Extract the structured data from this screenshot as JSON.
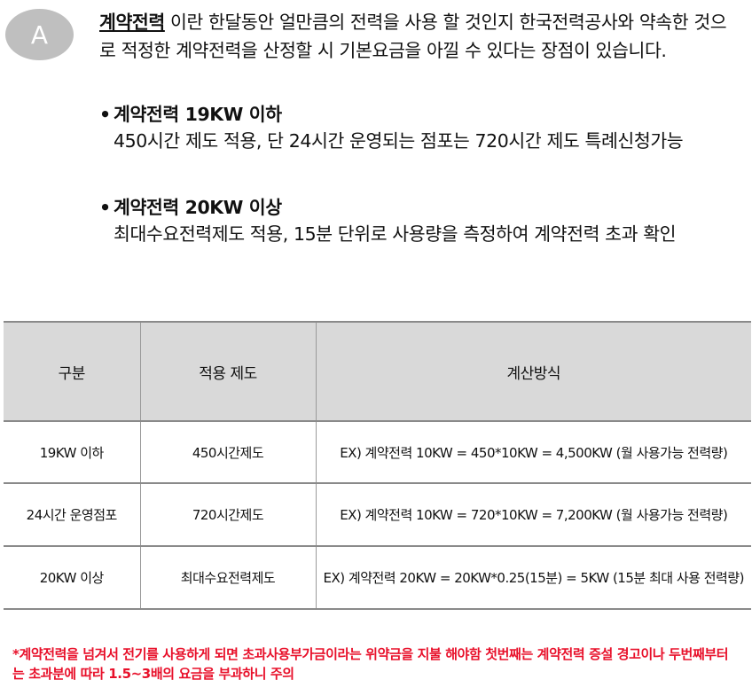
{
  "badge": "A",
  "intro": {
    "term": "계약전력",
    "text": " 이란 한달동안 얼만큼의 전력을 사용 할 것인지 한국전력공사와 약속한 것으로 적정한 계약전력을 산정할 시 기본요금을 아낄 수 있다는 장점이 있습니다."
  },
  "bullets": [
    {
      "title": "계약전력 19KW 이하",
      "desc": "450시간 제도 적용, 단 24시간 운영되는 점포는 720시간 제도 특례신청가능"
    },
    {
      "title": "계약전력 20KW 이상",
      "desc": "최대수요전력제도 적용, 15분 단위로 사용량을 측정하여 계약전력 초과 확인"
    }
  ],
  "table": {
    "headers": [
      "구분",
      "적용 제도",
      "계산방식"
    ],
    "rows": [
      [
        "19KW 이하",
        "450시간제도",
        "EX) 계약전력 10KW = 450*10KW = 4,500KW (월 사용가능 전력량)"
      ],
      [
        "24시간 운영점포",
        "720시간제도",
        "EX) 계약전력 10KW = 720*10KW = 7,200KW (월 사용가능 전력량)"
      ],
      [
        "20KW 이상",
        "최대수요전력제도",
        "EX) 계약전력 20KW = 20KW*0.25(15분) = 5KW (15분 최대 사용 전력량)"
      ]
    ]
  },
  "note": "*계약전력을 넘겨서 전기를 사용하게 되면 초과사용부가금이라는 위약금을 지불 해야함 첫번째는 계약전력 증설 경고이나 두번째부터는 초과분에 따라 1.5~3배의 요금을 부과하니 주의",
  "colors": {
    "badge_bg": "#bfbfbf",
    "header_bg": "#d9d9d9",
    "note": "#e8102a"
  }
}
